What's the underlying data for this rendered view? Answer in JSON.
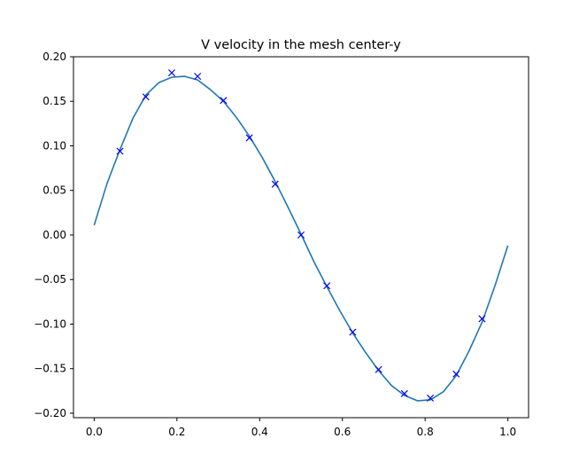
{
  "chart_data": {
    "type": "line",
    "title": "V velocity in the mesh center-y",
    "xlabel": "",
    "ylabel": "",
    "xlim": [
      -0.05,
      1.05
    ],
    "ylim": [
      -0.205,
      0.2
    ],
    "grid": false,
    "x_ticks": [
      0.0,
      0.2,
      0.4,
      0.6,
      0.8,
      1.0
    ],
    "x_tick_labels": [
      "0.0",
      "0.2",
      "0.4",
      "0.6",
      "0.8",
      "1.0"
    ],
    "y_ticks": [
      0.2,
      0.15,
      0.1,
      0.05,
      0.0,
      -0.05,
      -0.1,
      -0.15,
      -0.2
    ],
    "y_tick_labels": [
      "0.20",
      "0.15",
      "0.10",
      "0.05",
      "0.00",
      "−0.05",
      "−0.10",
      "−0.15",
      "−0.20"
    ],
    "series": [
      {
        "kind": "line",
        "color": "#1f77b4",
        "x": [
          0.0,
          0.03125,
          0.0625,
          0.09375,
          0.125,
          0.15625,
          0.1875,
          0.21875,
          0.25,
          0.28125,
          0.3125,
          0.34375,
          0.375,
          0.40625,
          0.4375,
          0.46875,
          0.5,
          0.53125,
          0.5625,
          0.59375,
          0.625,
          0.65625,
          0.6875,
          0.71875,
          0.75,
          0.78125,
          0.8125,
          0.84375,
          0.875,
          0.90625,
          0.9375,
          0.96875,
          1.0
        ],
        "y": [
          0.011,
          0.058,
          0.096,
          0.131,
          0.157,
          0.171,
          0.177,
          0.178,
          0.174,
          0.163,
          0.15,
          0.132,
          0.111,
          0.087,
          0.06,
          0.031,
          0.001,
          -0.03,
          -0.058,
          -0.085,
          -0.11,
          -0.132,
          -0.152,
          -0.169,
          -0.18,
          -0.186,
          -0.185,
          -0.176,
          -0.158,
          -0.13,
          -0.098,
          -0.057,
          -0.012
        ]
      },
      {
        "kind": "marker",
        "marker": "x",
        "color": "#0000ff",
        "x": [
          0.0625,
          0.125,
          0.1875,
          0.25,
          0.3125,
          0.375,
          0.4375,
          0.5,
          0.5625,
          0.625,
          0.6875,
          0.75,
          0.8125,
          0.875,
          0.9375
        ],
        "y": [
          0.094,
          0.155,
          0.182,
          0.178,
          0.151,
          0.109,
          0.057,
          0.0,
          -0.057,
          -0.109,
          -0.151,
          -0.178,
          -0.183,
          -0.156,
          -0.094
        ]
      }
    ]
  }
}
